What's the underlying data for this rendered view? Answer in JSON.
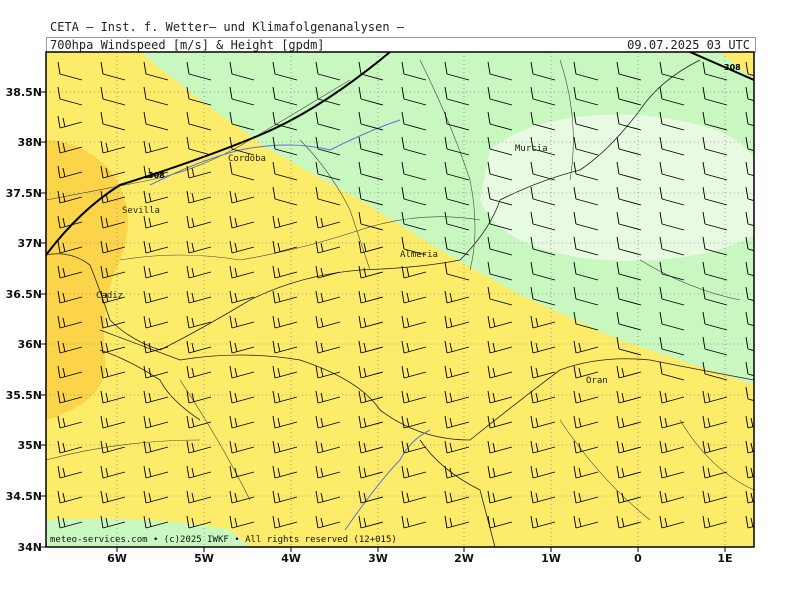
{
  "header": {
    "title": "CETA – Inst. f. Wetter– und Klimafolgenanalysen –",
    "subtitle": "700hpa Windspeed [m/s] & Height [gpdm]",
    "datetime": "09.07.2025 03 UTC"
  },
  "footer": {
    "credit": "meteo-services.com • (c)2025 IWKF • All rights reserved (12+015)"
  },
  "axes": {
    "lon_labels": [
      "6W",
      "5W",
      "4W",
      "3W",
      "2W",
      "1W",
      "0",
      "1E"
    ],
    "lat_labels": [
      "38.5N",
      "38N",
      "37.5N",
      "37N",
      "36.5N",
      "36N",
      "35.5N",
      "35N",
      "34.5N",
      "34N"
    ]
  },
  "cities": [
    {
      "name": "Cordoba"
    },
    {
      "name": "Sevilla"
    },
    {
      "name": "Cadiz"
    },
    {
      "name": "Almeria"
    },
    {
      "name": "Murcia"
    },
    {
      "name": "Oran"
    }
  ],
  "contour_labels": [
    "308",
    "308"
  ],
  "colors": {
    "light_green": "#c8f7c0",
    "pale_green": "#e8fbe2",
    "yellow": "#fdec6a",
    "gold": "#fcd44a"
  }
}
